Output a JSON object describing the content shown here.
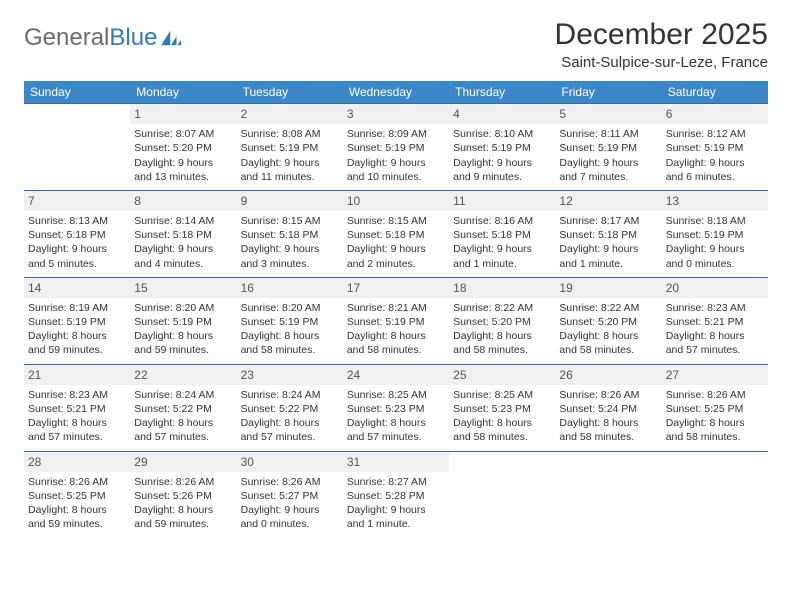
{
  "logo": {
    "word1": "General",
    "word2": "Blue"
  },
  "title": "December 2025",
  "location": "Saint-Sulpice-sur-Leze, France",
  "colors": {
    "header_bg": "#3b87c8",
    "header_text": "#ffffff",
    "daynum_bg": "#eef0f2",
    "cell_border": "#2f6da8",
    "logo_gray": "#6b6b6b",
    "logo_blue": "#2f7bbf"
  },
  "weekdays": [
    "Sunday",
    "Monday",
    "Tuesday",
    "Wednesday",
    "Thursday",
    "Friday",
    "Saturday"
  ],
  "grid": {
    "start_offset": 1,
    "days": [
      {
        "n": "1",
        "sunrise": "Sunrise: 8:07 AM",
        "sunset": "Sunset: 5:20 PM",
        "day1": "Daylight: 9 hours",
        "day2": "and 13 minutes."
      },
      {
        "n": "2",
        "sunrise": "Sunrise: 8:08 AM",
        "sunset": "Sunset: 5:19 PM",
        "day1": "Daylight: 9 hours",
        "day2": "and 11 minutes."
      },
      {
        "n": "3",
        "sunrise": "Sunrise: 8:09 AM",
        "sunset": "Sunset: 5:19 PM",
        "day1": "Daylight: 9 hours",
        "day2": "and 10 minutes."
      },
      {
        "n": "4",
        "sunrise": "Sunrise: 8:10 AM",
        "sunset": "Sunset: 5:19 PM",
        "day1": "Daylight: 9 hours",
        "day2": "and 9 minutes."
      },
      {
        "n": "5",
        "sunrise": "Sunrise: 8:11 AM",
        "sunset": "Sunset: 5:19 PM",
        "day1": "Daylight: 9 hours",
        "day2": "and 7 minutes."
      },
      {
        "n": "6",
        "sunrise": "Sunrise: 8:12 AM",
        "sunset": "Sunset: 5:19 PM",
        "day1": "Daylight: 9 hours",
        "day2": "and 6 minutes."
      },
      {
        "n": "7",
        "sunrise": "Sunrise: 8:13 AM",
        "sunset": "Sunset: 5:18 PM",
        "day1": "Daylight: 9 hours",
        "day2": "and 5 minutes."
      },
      {
        "n": "8",
        "sunrise": "Sunrise: 8:14 AM",
        "sunset": "Sunset: 5:18 PM",
        "day1": "Daylight: 9 hours",
        "day2": "and 4 minutes."
      },
      {
        "n": "9",
        "sunrise": "Sunrise: 8:15 AM",
        "sunset": "Sunset: 5:18 PM",
        "day1": "Daylight: 9 hours",
        "day2": "and 3 minutes."
      },
      {
        "n": "10",
        "sunrise": "Sunrise: 8:15 AM",
        "sunset": "Sunset: 5:18 PM",
        "day1": "Daylight: 9 hours",
        "day2": "and 2 minutes."
      },
      {
        "n": "11",
        "sunrise": "Sunrise: 8:16 AM",
        "sunset": "Sunset: 5:18 PM",
        "day1": "Daylight: 9 hours",
        "day2": "and 1 minute."
      },
      {
        "n": "12",
        "sunrise": "Sunrise: 8:17 AM",
        "sunset": "Sunset: 5:18 PM",
        "day1": "Daylight: 9 hours",
        "day2": "and 1 minute."
      },
      {
        "n": "13",
        "sunrise": "Sunrise: 8:18 AM",
        "sunset": "Sunset: 5:19 PM",
        "day1": "Daylight: 9 hours",
        "day2": "and 0 minutes."
      },
      {
        "n": "14",
        "sunrise": "Sunrise: 8:19 AM",
        "sunset": "Sunset: 5:19 PM",
        "day1": "Daylight: 8 hours",
        "day2": "and 59 minutes."
      },
      {
        "n": "15",
        "sunrise": "Sunrise: 8:20 AM",
        "sunset": "Sunset: 5:19 PM",
        "day1": "Daylight: 8 hours",
        "day2": "and 59 minutes."
      },
      {
        "n": "16",
        "sunrise": "Sunrise: 8:20 AM",
        "sunset": "Sunset: 5:19 PM",
        "day1": "Daylight: 8 hours",
        "day2": "and 58 minutes."
      },
      {
        "n": "17",
        "sunrise": "Sunrise: 8:21 AM",
        "sunset": "Sunset: 5:19 PM",
        "day1": "Daylight: 8 hours",
        "day2": "and 58 minutes."
      },
      {
        "n": "18",
        "sunrise": "Sunrise: 8:22 AM",
        "sunset": "Sunset: 5:20 PM",
        "day1": "Daylight: 8 hours",
        "day2": "and 58 minutes."
      },
      {
        "n": "19",
        "sunrise": "Sunrise: 8:22 AM",
        "sunset": "Sunset: 5:20 PM",
        "day1": "Daylight: 8 hours",
        "day2": "and 58 minutes."
      },
      {
        "n": "20",
        "sunrise": "Sunrise: 8:23 AM",
        "sunset": "Sunset: 5:21 PM",
        "day1": "Daylight: 8 hours",
        "day2": "and 57 minutes."
      },
      {
        "n": "21",
        "sunrise": "Sunrise: 8:23 AM",
        "sunset": "Sunset: 5:21 PM",
        "day1": "Daylight: 8 hours",
        "day2": "and 57 minutes."
      },
      {
        "n": "22",
        "sunrise": "Sunrise: 8:24 AM",
        "sunset": "Sunset: 5:22 PM",
        "day1": "Daylight: 8 hours",
        "day2": "and 57 minutes."
      },
      {
        "n": "23",
        "sunrise": "Sunrise: 8:24 AM",
        "sunset": "Sunset: 5:22 PM",
        "day1": "Daylight: 8 hours",
        "day2": "and 57 minutes."
      },
      {
        "n": "24",
        "sunrise": "Sunrise: 8:25 AM",
        "sunset": "Sunset: 5:23 PM",
        "day1": "Daylight: 8 hours",
        "day2": "and 57 minutes."
      },
      {
        "n": "25",
        "sunrise": "Sunrise: 8:25 AM",
        "sunset": "Sunset: 5:23 PM",
        "day1": "Daylight: 8 hours",
        "day2": "and 58 minutes."
      },
      {
        "n": "26",
        "sunrise": "Sunrise: 8:26 AM",
        "sunset": "Sunset: 5:24 PM",
        "day1": "Daylight: 8 hours",
        "day2": "and 58 minutes."
      },
      {
        "n": "27",
        "sunrise": "Sunrise: 8:26 AM",
        "sunset": "Sunset: 5:25 PM",
        "day1": "Daylight: 8 hours",
        "day2": "and 58 minutes."
      },
      {
        "n": "28",
        "sunrise": "Sunrise: 8:26 AM",
        "sunset": "Sunset: 5:25 PM",
        "day1": "Daylight: 8 hours",
        "day2": "and 59 minutes."
      },
      {
        "n": "29",
        "sunrise": "Sunrise: 8:26 AM",
        "sunset": "Sunset: 5:26 PM",
        "day1": "Daylight: 8 hours",
        "day2": "and 59 minutes."
      },
      {
        "n": "30",
        "sunrise": "Sunrise: 8:26 AM",
        "sunset": "Sunset: 5:27 PM",
        "day1": "Daylight: 9 hours",
        "day2": "and 0 minutes."
      },
      {
        "n": "31",
        "sunrise": "Sunrise: 8:27 AM",
        "sunset": "Sunset: 5:28 PM",
        "day1": "Daylight: 9 hours",
        "day2": "and 1 minute."
      }
    ]
  }
}
